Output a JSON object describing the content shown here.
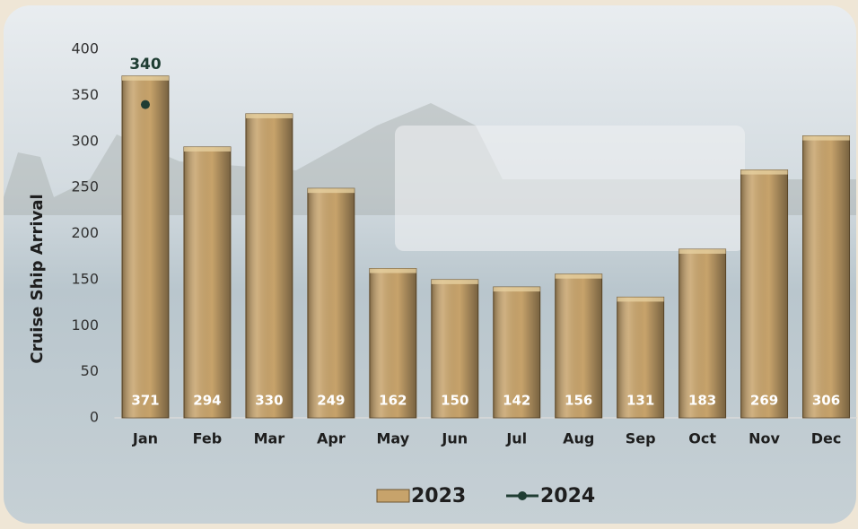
{
  "chart_data": {
    "type": "bar",
    "y_label": "Cruise Ship Arrival",
    "categories": [
      "Jan",
      "Feb",
      "Mar",
      "Apr",
      "May",
      "Jun",
      "Jul",
      "Aug",
      "Sep",
      "Oct",
      "Nov",
      "Dec"
    ],
    "series": [
      {
        "name": "2023",
        "type": "bar",
        "color": "#c7a36b",
        "values": [
          371,
          294,
          330,
          249,
          162,
          150,
          142,
          156,
          131,
          183,
          269,
          306
        ]
      },
      {
        "name": "2024",
        "type": "line",
        "color": "#1f3d33",
        "values": [
          340,
          null,
          null,
          null,
          null,
          null,
          null,
          null,
          null,
          null,
          null,
          null
        ]
      }
    ],
    "ylim": [
      0,
      400
    ],
    "yticks": [
      0,
      50,
      100,
      150,
      200,
      250,
      300,
      350,
      400
    ],
    "grid": false
  }
}
